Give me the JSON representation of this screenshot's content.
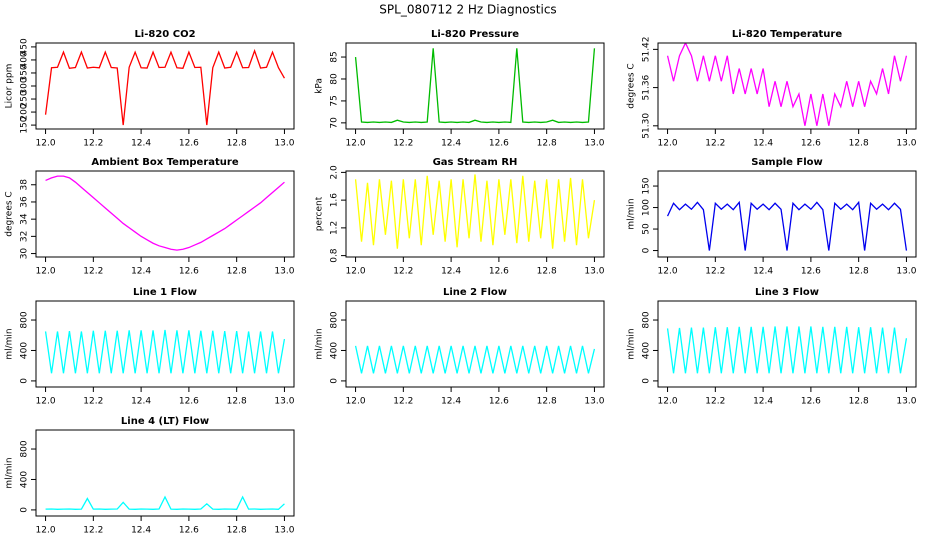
{
  "title": "SPL_080712  2 Hz Diagnostics",
  "chart_data": [
    {
      "type": "line",
      "title": "Li-820 CO2",
      "ylabel": "Licor ppm",
      "color": "#ff0000",
      "x": [
        12.0,
        12.025,
        12.05,
        12.075,
        12.1,
        12.125,
        12.15,
        12.175,
        12.2,
        12.225,
        12.25,
        12.275,
        12.3,
        12.325,
        12.35,
        12.375,
        12.4,
        12.425,
        12.45,
        12.475,
        12.5,
        12.525,
        12.55,
        12.575,
        12.6,
        12.625,
        12.65,
        12.675,
        12.7,
        12.725,
        12.75,
        12.775,
        12.8,
        12.825,
        12.85,
        12.875,
        12.9,
        12.925,
        12.95,
        12.975,
        13.0
      ],
      "values": [
        190,
        370,
        372,
        430,
        368,
        371,
        430,
        369,
        372,
        370,
        430,
        371,
        369,
        150,
        372,
        430,
        370,
        369,
        430,
        371,
        372,
        430,
        370,
        368,
        430,
        371,
        372,
        150,
        370,
        430,
        369,
        372,
        430,
        370,
        371,
        435,
        369,
        372,
        430,
        370,
        330
      ],
      "xlim": [
        11.96,
        13.04
      ],
      "xticks": [
        {
          "value": 12,
          "label": "12.0"
        },
        12.2,
        12.4,
        12.6,
        12.8,
        {
          "value": 13,
          "label": "13.0"
        }
      ],
      "ylim": [
        135,
        465
      ],
      "yticks": [
        150,
        200,
        250,
        300,
        350,
        400,
        450
      ]
    },
    {
      "type": "line",
      "title": "Li-820 Pressure",
      "ylabel": "kPa",
      "color": "#00bb00",
      "x": [
        12.0,
        12.025,
        12.05,
        12.075,
        12.1,
        12.125,
        12.15,
        12.175,
        12.2,
        12.225,
        12.25,
        12.275,
        12.3,
        12.325,
        12.35,
        12.375,
        12.4,
        12.425,
        12.45,
        12.475,
        12.5,
        12.525,
        12.55,
        12.575,
        12.6,
        12.625,
        12.65,
        12.675,
        12.7,
        12.725,
        12.75,
        12.775,
        12.8,
        12.825,
        12.85,
        12.875,
        12.9,
        12.925,
        12.95,
        12.975,
        13.0
      ],
      "values": [
        85,
        70.2,
        70.1,
        70.2,
        70.1,
        70.2,
        70.1,
        70.6,
        70.2,
        70.1,
        70.2,
        70.1,
        70.2,
        87,
        70.2,
        70.1,
        70.2,
        70.1,
        70.2,
        70.1,
        70.6,
        70.2,
        70.1,
        70.2,
        70.1,
        70.2,
        70.1,
        87,
        70.2,
        70.1,
        70.2,
        70.1,
        70.2,
        70.6,
        70.1,
        70.2,
        70.1,
        70.2,
        70.1,
        70.2,
        87
      ],
      "xlim": [
        11.96,
        13.04
      ],
      "xticks": [
        {
          "value": 12,
          "label": "12.0"
        },
        12.2,
        12.4,
        12.6,
        12.8,
        {
          "value": 13,
          "label": "13.0"
        }
      ],
      "ylim": [
        68.6,
        88.2
      ],
      "yticks": [
        70,
        75,
        80,
        85
      ]
    },
    {
      "type": "line",
      "title": "Li-820 Temperature",
      "ylabel": "degrees C",
      "color": "#ff00ff",
      "x": [
        12.0,
        12.025,
        12.05,
        12.075,
        12.1,
        12.125,
        12.15,
        12.175,
        12.2,
        12.225,
        12.25,
        12.275,
        12.3,
        12.325,
        12.35,
        12.375,
        12.4,
        12.425,
        12.45,
        12.475,
        12.5,
        12.525,
        12.55,
        12.575,
        12.6,
        12.625,
        12.65,
        12.675,
        12.7,
        12.725,
        12.75,
        12.775,
        12.8,
        12.825,
        12.85,
        12.875,
        12.9,
        12.925,
        12.95,
        12.975,
        13.0
      ],
      "values": [
        51.41,
        51.37,
        51.41,
        51.43,
        51.41,
        51.37,
        51.41,
        51.37,
        51.41,
        51.37,
        51.41,
        51.35,
        51.39,
        51.35,
        51.39,
        51.35,
        51.39,
        51.33,
        51.37,
        51.33,
        51.37,
        51.33,
        51.35,
        51.3,
        51.35,
        51.3,
        51.35,
        51.3,
        51.35,
        51.33,
        51.37,
        51.33,
        51.37,
        51.33,
        51.37,
        51.35,
        51.39,
        51.35,
        51.41,
        51.37,
        51.41
      ],
      "xlim": [
        11.96,
        13.04
      ],
      "xticks": [
        {
          "value": 12,
          "label": "12.0"
        },
        12.2,
        12.4,
        12.6,
        12.8,
        {
          "value": 13,
          "label": "13.0"
        }
      ],
      "ylim": [
        51.295,
        51.43
      ],
      "yticks": [
        {
          "value": 51.3,
          "label": "51.30"
        },
        51.36,
        51.42
      ]
    },
    {
      "type": "line",
      "title": "Ambient Box Temperature",
      "ylabel": "degrees C",
      "color": "#ff00ff",
      "x": [
        12.0,
        12.025,
        12.05,
        12.075,
        12.1,
        12.125,
        12.15,
        12.175,
        12.2,
        12.225,
        12.25,
        12.275,
        12.3,
        12.325,
        12.35,
        12.375,
        12.4,
        12.425,
        12.45,
        12.475,
        12.5,
        12.525,
        12.55,
        12.575,
        12.6,
        12.625,
        12.65,
        12.675,
        12.7,
        12.725,
        12.75,
        12.775,
        12.8,
        12.825,
        12.85,
        12.875,
        12.9,
        12.925,
        12.95,
        12.975,
        13.0
      ],
      "values": [
        38.5,
        38.8,
        39.0,
        39.0,
        38.8,
        38.3,
        37.7,
        37.1,
        36.5,
        35.9,
        35.3,
        34.7,
        34.1,
        33.5,
        33.0,
        32.5,
        32.0,
        31.6,
        31.2,
        30.9,
        30.7,
        30.5,
        30.4,
        30.5,
        30.7,
        31.0,
        31.3,
        31.7,
        32.1,
        32.5,
        32.9,
        33.4,
        33.9,
        34.4,
        34.9,
        35.4,
        35.9,
        36.5,
        37.1,
        37.7,
        38.3
      ],
      "xlim": [
        11.96,
        13.04
      ],
      "xticks": [
        {
          "value": 12,
          "label": "12.0"
        },
        12.2,
        12.4,
        12.6,
        12.8,
        {
          "value": 13,
          "label": "13.0"
        }
      ],
      "ylim": [
        29.6,
        39.6
      ],
      "yticks": [
        30,
        32,
        34,
        36,
        38
      ]
    },
    {
      "type": "line",
      "title": "Gas Stream RH",
      "ylabel": "percent",
      "color": "#ffff00",
      "x": [
        12.0,
        12.025,
        12.05,
        12.075,
        12.1,
        12.125,
        12.15,
        12.175,
        12.2,
        12.225,
        12.25,
        12.275,
        12.3,
        12.325,
        12.35,
        12.375,
        12.4,
        12.425,
        12.45,
        12.475,
        12.5,
        12.525,
        12.55,
        12.575,
        12.6,
        12.625,
        12.65,
        12.675,
        12.7,
        12.725,
        12.75,
        12.775,
        12.8,
        12.825,
        12.85,
        12.875,
        12.9,
        12.925,
        12.95,
        12.975,
        13.0
      ],
      "values": [
        1.9,
        1.0,
        1.85,
        0.95,
        1.9,
        1.1,
        1.88,
        0.9,
        1.9,
        1.05,
        1.9,
        0.95,
        1.95,
        1.1,
        1.88,
        1.0,
        1.9,
        0.92,
        1.9,
        1.05,
        1.97,
        1.0,
        1.88,
        0.95,
        1.9,
        1.1,
        1.9,
        0.98,
        1.95,
        1.0,
        1.88,
        1.05,
        1.9,
        0.9,
        1.9,
        1.0,
        1.92,
        0.95,
        1.9,
        1.05,
        1.6
      ],
      "xlim": [
        11.96,
        13.04
      ],
      "xticks": [
        {
          "value": 12,
          "label": "12.0"
        },
        12.2,
        12.4,
        12.6,
        12.8,
        {
          "value": 13,
          "label": "13.0"
        }
      ],
      "ylim": [
        0.78,
        2.02
      ],
      "yticks": [
        0.8,
        1.2,
        1.6,
        {
          "value": 2,
          "label": "2.0"
        }
      ]
    },
    {
      "type": "line",
      "title": "Sample Flow",
      "ylabel": "ml/min",
      "color": "#0000ee",
      "x": [
        12.0,
        12.025,
        12.05,
        12.075,
        12.1,
        12.125,
        12.15,
        12.175,
        12.2,
        12.225,
        12.25,
        12.275,
        12.3,
        12.325,
        12.35,
        12.375,
        12.4,
        12.425,
        12.45,
        12.475,
        12.5,
        12.525,
        12.55,
        12.575,
        12.6,
        12.625,
        12.65,
        12.675,
        12.7,
        12.725,
        12.75,
        12.775,
        12.8,
        12.825,
        12.85,
        12.875,
        12.9,
        12.925,
        12.95,
        12.975,
        13.0
      ],
      "values": [
        80,
        110,
        95,
        108,
        96,
        112,
        95,
        0,
        110,
        96,
        108,
        95,
        112,
        0,
        110,
        96,
        108,
        95,
        110,
        96,
        0,
        110,
        95,
        108,
        96,
        112,
        95,
        0,
        110,
        96,
        108,
        95,
        112,
        0,
        110,
        96,
        108,
        95,
        110,
        96,
        0
      ],
      "xlim": [
        11.96,
        13.04
      ],
      "xticks": [
        {
          "value": 12,
          "label": "12.0"
        },
        12.2,
        12.4,
        12.6,
        12.8,
        {
          "value": 13,
          "label": "13.0"
        }
      ],
      "ylim": [
        -15,
        185
      ],
      "yticks": [
        0,
        50,
        100,
        150
      ]
    },
    {
      "type": "line",
      "title": "Line 1 Flow",
      "ylabel": "ml/min",
      "color": "#00ffff",
      "x": [
        12.0,
        12.025,
        12.05,
        12.075,
        12.1,
        12.125,
        12.15,
        12.175,
        12.2,
        12.225,
        12.25,
        12.275,
        12.3,
        12.325,
        12.35,
        12.375,
        12.4,
        12.425,
        12.45,
        12.475,
        12.5,
        12.525,
        12.55,
        12.575,
        12.6,
        12.625,
        12.65,
        12.675,
        12.7,
        12.725,
        12.75,
        12.775,
        12.8,
        12.825,
        12.85,
        12.875,
        12.9,
        12.925,
        12.95,
        12.975,
        13.0
      ],
      "values": [
        650,
        100,
        650,
        100,
        655,
        100,
        650,
        100,
        660,
        100,
        660,
        100,
        660,
        100,
        665,
        100,
        665,
        100,
        665,
        100,
        670,
        100,
        665,
        100,
        665,
        100,
        660,
        100,
        660,
        100,
        655,
        100,
        655,
        100,
        650,
        100,
        650,
        100,
        650,
        100,
        550
      ],
      "xlim": [
        11.96,
        13.04
      ],
      "xticks": [
        {
          "value": 12,
          "label": "12.0"
        },
        12.2,
        12.4,
        12.6,
        12.8,
        {
          "value": 13,
          "label": "13.0"
        }
      ],
      "ylim": [
        -80,
        1050
      ],
      "yticks": [
        0,
        400,
        800
      ]
    },
    {
      "type": "line",
      "title": "Line 2 Flow",
      "ylabel": "ml/min",
      "color": "#00ffff",
      "x": [
        12.0,
        12.025,
        12.05,
        12.075,
        12.1,
        12.125,
        12.15,
        12.175,
        12.2,
        12.225,
        12.25,
        12.275,
        12.3,
        12.325,
        12.35,
        12.375,
        12.4,
        12.425,
        12.45,
        12.475,
        12.5,
        12.525,
        12.55,
        12.575,
        12.6,
        12.625,
        12.65,
        12.675,
        12.7,
        12.725,
        12.75,
        12.775,
        12.8,
        12.825,
        12.85,
        12.875,
        12.9,
        12.925,
        12.95,
        12.975,
        13.0
      ],
      "values": [
        460,
        100,
        460,
        100,
        460,
        100,
        460,
        100,
        460,
        100,
        460,
        100,
        460,
        100,
        460,
        100,
        460,
        100,
        460,
        100,
        460,
        100,
        460,
        100,
        460,
        100,
        460,
        100,
        460,
        100,
        460,
        100,
        460,
        100,
        460,
        100,
        460,
        100,
        460,
        100,
        420
      ],
      "xlim": [
        11.96,
        13.04
      ],
      "xticks": [
        {
          "value": 12,
          "label": "12.0"
        },
        12.2,
        12.4,
        12.6,
        12.8,
        {
          "value": 13,
          "label": "13.0"
        }
      ],
      "ylim": [
        -80,
        1050
      ],
      "yticks": [
        0,
        400,
        800
      ]
    },
    {
      "type": "line",
      "title": "Line 3 Flow",
      "ylabel": "ml/min",
      "color": "#00ffff",
      "x": [
        12.0,
        12.025,
        12.05,
        12.075,
        12.1,
        12.125,
        12.15,
        12.175,
        12.2,
        12.225,
        12.25,
        12.275,
        12.3,
        12.325,
        12.35,
        12.375,
        12.4,
        12.425,
        12.45,
        12.475,
        12.5,
        12.525,
        12.55,
        12.575,
        12.6,
        12.625,
        12.65,
        12.675,
        12.7,
        12.725,
        12.75,
        12.775,
        12.8,
        12.825,
        12.85,
        12.875,
        12.9,
        12.925,
        12.95,
        12.975,
        13.0
      ],
      "values": [
        690,
        100,
        695,
        100,
        700,
        100,
        700,
        100,
        705,
        100,
        705,
        100,
        710,
        100,
        710,
        100,
        710,
        100,
        715,
        100,
        715,
        100,
        715,
        100,
        715,
        100,
        710,
        100,
        710,
        100,
        710,
        100,
        705,
        100,
        705,
        100,
        700,
        100,
        700,
        100,
        560
      ],
      "xlim": [
        11.96,
        13.04
      ],
      "xticks": [
        {
          "value": 12,
          "label": "12.0"
        },
        12.2,
        12.4,
        12.6,
        12.8,
        {
          "value": 13,
          "label": "13.0"
        }
      ],
      "ylim": [
        -80,
        1050
      ],
      "yticks": [
        0,
        400,
        800
      ]
    },
    {
      "type": "line",
      "title": "Line 4 (LT) Flow",
      "ylabel": "ml/min",
      "color": "#00ffff",
      "x": [
        12.0,
        12.025,
        12.05,
        12.075,
        12.1,
        12.125,
        12.15,
        12.175,
        12.2,
        12.225,
        12.25,
        12.275,
        12.3,
        12.325,
        12.35,
        12.375,
        12.4,
        12.425,
        12.45,
        12.475,
        12.5,
        12.525,
        12.55,
        12.575,
        12.6,
        12.625,
        12.65,
        12.675,
        12.7,
        12.725,
        12.75,
        12.775,
        12.8,
        12.825,
        12.85,
        12.875,
        12.9,
        12.925,
        12.95,
        12.975,
        13.0
      ],
      "values": [
        10,
        12,
        8,
        10,
        12,
        8,
        10,
        150,
        10,
        12,
        8,
        10,
        12,
        100,
        10,
        8,
        12,
        10,
        8,
        12,
        170,
        10,
        8,
        12,
        10,
        8,
        12,
        80,
        10,
        8,
        12,
        10,
        8,
        170,
        10,
        12,
        8,
        10,
        12,
        8,
        80
      ],
      "xlim": [
        11.96,
        13.04
      ],
      "xticks": [
        {
          "value": 12,
          "label": "12.0"
        },
        12.2,
        12.4,
        12.6,
        12.8,
        {
          "value": 13,
          "label": "13.0"
        }
      ],
      "ylim": [
        -80,
        1050
      ],
      "yticks": [
        0,
        400,
        800
      ]
    }
  ]
}
